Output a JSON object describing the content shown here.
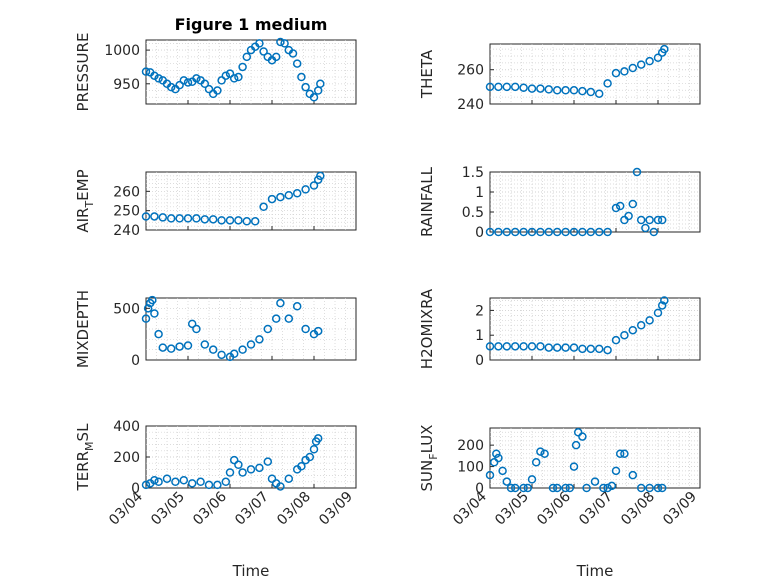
{
  "window": {
    "title": "Figure 1 medium"
  },
  "chart_data": [
    {
      "type": "scatter",
      "id": "pressure",
      "title": "Figure 1 medium",
      "ylabel": "PRESSURE",
      "ylim": [
        920,
        1015
      ],
      "yticks": [
        950,
        1000
      ],
      "ytick_labels": [
        "950",
        "1000"
      ],
      "xlim": [
        0,
        5
      ],
      "x": [
        0,
        0.1,
        0.2,
        0.3,
        0.4,
        0.5,
        0.6,
        0.7,
        0.8,
        0.9,
        1.0,
        1.1,
        1.2,
        1.3,
        1.4,
        1.5,
        1.6,
        1.7,
        1.8,
        1.9,
        2.0,
        2.1,
        2.2,
        2.3,
        2.4,
        2.5,
        2.6,
        2.7,
        2.8,
        2.9,
        3.0,
        3.1,
        3.2,
        3.3,
        3.4,
        3.5,
        3.6,
        3.7,
        3.8,
        3.9,
        4.0,
        4.1,
        4.15
      ],
      "y": [
        968,
        967,
        962,
        958,
        955,
        950,
        945,
        942,
        948,
        955,
        952,
        953,
        958,
        955,
        950,
        942,
        935,
        940,
        955,
        962,
        965,
        958,
        960,
        975,
        990,
        1000,
        1005,
        1010,
        998,
        990,
        985,
        990,
        1012,
        1010,
        1000,
        995,
        980,
        960,
        945,
        935,
        930,
        940,
        950
      ]
    },
    {
      "type": "scatter",
      "id": "theta",
      "ylabel": "THETA",
      "ylim": [
        240,
        275
      ],
      "yticks": [
        240,
        260
      ],
      "ytick_labels": [
        "240",
        "260"
      ],
      "xlim": [
        0,
        5
      ],
      "x": [
        0,
        0.2,
        0.4,
        0.6,
        0.8,
        1.0,
        1.2,
        1.4,
        1.6,
        1.8,
        2.0,
        2.2,
        2.4,
        2.6,
        2.8,
        3.0,
        3.2,
        3.4,
        3.6,
        3.8,
        4.0,
        4.1,
        4.15
      ],
      "y": [
        250,
        250,
        250,
        250,
        249.5,
        249,
        249,
        248.5,
        248,
        248,
        248,
        247.5,
        247,
        246,
        252,
        258,
        259,
        261,
        263,
        265,
        267,
        270,
        272
      ]
    },
    {
      "type": "scatter",
      "id": "air_temp",
      "ylabel": "AIR_TEMP",
      "ylim": [
        240,
        270
      ],
      "yticks": [
        240,
        250,
        260
      ],
      "ytick_labels": [
        "240",
        "250",
        "260"
      ],
      "xlim": [
        0,
        5
      ],
      "x": [
        0,
        0.2,
        0.4,
        0.6,
        0.8,
        1.0,
        1.2,
        1.4,
        1.6,
        1.8,
        2.0,
        2.2,
        2.4,
        2.6,
        2.8,
        3.0,
        3.2,
        3.4,
        3.6,
        3.8,
        4.0,
        4.1,
        4.15
      ],
      "y": [
        247,
        247,
        246.5,
        246,
        246,
        246,
        246,
        245.5,
        245.5,
        245,
        245,
        245,
        244.5,
        244.5,
        252,
        256,
        257,
        258,
        259,
        261,
        263,
        266,
        268
      ]
    },
    {
      "type": "scatter",
      "id": "rainfall",
      "ylabel": "RAINFALL",
      "ylim": [
        0,
        1.5
      ],
      "yticks": [
        0,
        0.5,
        1,
        1.5
      ],
      "ytick_labels": [
        "0",
        "0.5",
        "1",
        "1.5"
      ],
      "xlim": [
        0,
        5
      ],
      "x": [
        0,
        0.2,
        0.4,
        0.6,
        0.8,
        1.0,
        1.2,
        1.4,
        1.6,
        1.8,
        2.0,
        2.2,
        2.4,
        2.6,
        2.8,
        3.0,
        3.1,
        3.2,
        3.3,
        3.4,
        3.5,
        3.6,
        3.7,
        3.8,
        3.9,
        4.0,
        4.1
      ],
      "y": [
        0,
        0,
        0,
        0,
        0,
        0,
        0,
        0,
        0,
        0,
        0,
        0,
        0,
        0,
        0,
        0.6,
        0.65,
        0.3,
        0.4,
        0.7,
        1.5,
        0.3,
        0.1,
        0.3,
        0.0,
        0.3,
        0.3
      ]
    },
    {
      "type": "scatter",
      "id": "mixdepth",
      "ylabel": "MIXDEPTH",
      "ylim": [
        0,
        600
      ],
      "yticks": [
        0,
        500
      ],
      "ytick_labels": [
        "0",
        "500"
      ],
      "xlim": [
        0,
        5
      ],
      "x": [
        0,
        0.05,
        0.1,
        0.15,
        0.2,
        0.3,
        0.4,
        0.6,
        0.8,
        1.0,
        1.1,
        1.2,
        1.4,
        1.6,
        1.8,
        2.0,
        2.1,
        2.3,
        2.5,
        2.7,
        2.9,
        3.1,
        3.2,
        3.4,
        3.6,
        3.8,
        4.0,
        4.1
      ],
      "y": [
        400,
        500,
        550,
        580,
        450,
        250,
        120,
        110,
        130,
        140,
        350,
        300,
        150,
        100,
        50,
        30,
        60,
        100,
        150,
        200,
        300,
        400,
        550,
        400,
        520,
        300,
        250,
        280
      ]
    },
    {
      "type": "scatter",
      "id": "h2omixra",
      "ylabel": "H2OMIXRA",
      "ylim": [
        0,
        2.5
      ],
      "yticks": [
        0,
        1,
        2
      ],
      "ytick_labels": [
        "0",
        "1",
        "2"
      ],
      "xlim": [
        0,
        5
      ],
      "x": [
        0,
        0.2,
        0.4,
        0.6,
        0.8,
        1.0,
        1.2,
        1.4,
        1.6,
        1.8,
        2.0,
        2.2,
        2.4,
        2.6,
        2.8,
        3.0,
        3.2,
        3.4,
        3.6,
        3.8,
        4.0,
        4.1,
        4.15
      ],
      "y": [
        0.55,
        0.55,
        0.55,
        0.55,
        0.55,
        0.55,
        0.55,
        0.5,
        0.5,
        0.5,
        0.5,
        0.45,
        0.45,
        0.45,
        0.4,
        0.8,
        1.0,
        1.2,
        1.4,
        1.6,
        1.9,
        2.2,
        2.4
      ]
    },
    {
      "type": "scatter",
      "id": "terr_msl",
      "ylabel": "TERR_MSL",
      "ylim": [
        0,
        400
      ],
      "yticks": [
        0,
        200,
        400
      ],
      "ytick_labels": [
        "0",
        "200",
        "400"
      ],
      "xlim": [
        0,
        5
      ],
      "xlabel": "Time",
      "xtick_labels": [
        "03/04",
        "03/05",
        "03/06",
        "03/07",
        "03/08",
        "03/09"
      ],
      "x": [
        0,
        0.1,
        0.2,
        0.3,
        0.5,
        0.7,
        0.9,
        1.1,
        1.3,
        1.5,
        1.7,
        1.9,
        2.0,
        2.1,
        2.2,
        2.3,
        2.5,
        2.7,
        2.9,
        3.0,
        3.1,
        3.2,
        3.4,
        3.6,
        3.7,
        3.8,
        3.9,
        4.0,
        4.05,
        4.1
      ],
      "y": [
        20,
        30,
        50,
        40,
        60,
        40,
        50,
        30,
        40,
        20,
        20,
        40,
        100,
        180,
        150,
        100,
        120,
        130,
        170,
        60,
        30,
        10,
        60,
        120,
        140,
        180,
        200,
        250,
        300,
        320
      ]
    },
    {
      "type": "scatter",
      "id": "sun_flux",
      "ylabel": "SUN_FLUX",
      "ylim": [
        0,
        280
      ],
      "yticks": [
        0,
        100,
        200
      ],
      "ytick_labels": [
        "0",
        "100",
        "200"
      ],
      "xlim": [
        0,
        5
      ],
      "xlabel": "Time",
      "xtick_labels": [
        "03/04",
        "03/05",
        "03/06",
        "03/07",
        "03/08",
        "03/09"
      ],
      "x": [
        0,
        0.1,
        0.15,
        0.2,
        0.3,
        0.4,
        0.5,
        0.6,
        0.8,
        0.9,
        1.0,
        1.1,
        1.2,
        1.3,
        1.5,
        1.6,
        1.8,
        1.9,
        2.0,
        2.05,
        2.1,
        2.2,
        2.3,
        2.5,
        2.7,
        2.8,
        2.9,
        3.0,
        3.1,
        3.2,
        3.4,
        3.6,
        3.8,
        4.0,
        4.1
      ],
      "y": [
        60,
        120,
        160,
        140,
        80,
        30,
        0,
        0,
        0,
        0,
        40,
        120,
        170,
        160,
        0,
        0,
        0,
        0,
        100,
        200,
        260,
        240,
        0,
        30,
        0,
        0,
        10,
        80,
        160,
        160,
        60,
        0,
        0,
        0,
        0
      ]
    }
  ]
}
